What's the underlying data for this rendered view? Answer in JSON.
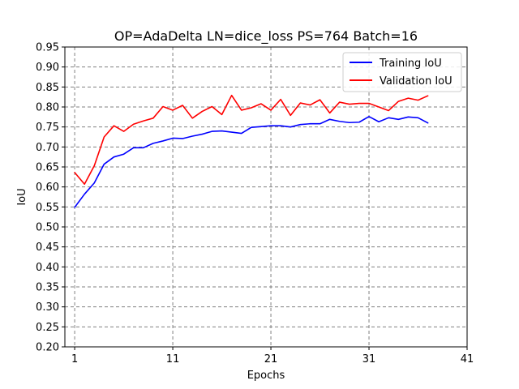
{
  "chart_data": {
    "type": "line",
    "title": "OP=AdaDelta LN=dice_loss PS=764 Batch=16",
    "xlabel": "Epochs",
    "ylabel": "IoU",
    "xlim": [
      0,
      41
    ],
    "ylim": [
      0.2,
      0.95
    ],
    "x_ticks": [
      1,
      11,
      21,
      31,
      41
    ],
    "y_ticks": [
      0.2,
      0.25,
      0.3,
      0.35,
      0.4,
      0.45,
      0.5,
      0.55,
      0.6,
      0.65,
      0.7,
      0.75,
      0.8,
      0.85,
      0.9,
      0.95
    ],
    "grid": true,
    "legend_position": "top-right",
    "x": [
      1,
      2,
      3,
      4,
      5,
      6,
      7,
      8,
      9,
      10,
      11,
      12,
      13,
      14,
      15,
      16,
      17,
      18,
      19,
      20,
      21,
      22,
      23,
      24,
      25,
      26,
      27,
      28,
      29,
      30,
      31,
      32,
      33,
      34,
      35,
      36,
      37
    ],
    "series": [
      {
        "name": "Training IoU",
        "color": "#0000ff",
        "values": [
          0.549,
          0.582,
          0.61,
          0.657,
          0.675,
          0.682,
          0.698,
          0.698,
          0.709,
          0.715,
          0.722,
          0.721,
          0.727,
          0.732,
          0.739,
          0.74,
          0.737,
          0.734,
          0.749,
          0.751,
          0.753,
          0.753,
          0.75,
          0.756,
          0.758,
          0.758,
          0.769,
          0.764,
          0.761,
          0.762,
          0.776,
          0.763,
          0.773,
          0.769,
          0.775,
          0.773,
          0.76
        ]
      },
      {
        "name": "Validation IoU",
        "color": "#ff0000",
        "values": [
          0.636,
          0.607,
          0.653,
          0.725,
          0.753,
          0.739,
          0.757,
          0.765,
          0.772,
          0.801,
          0.792,
          0.804,
          0.772,
          0.789,
          0.801,
          0.781,
          0.829,
          0.792,
          0.798,
          0.808,
          0.792,
          0.819,
          0.779,
          0.81,
          0.805,
          0.818,
          0.785,
          0.812,
          0.807,
          0.809,
          0.809,
          0.8,
          0.791,
          0.814,
          0.822,
          0.817,
          0.828
        ]
      }
    ]
  }
}
